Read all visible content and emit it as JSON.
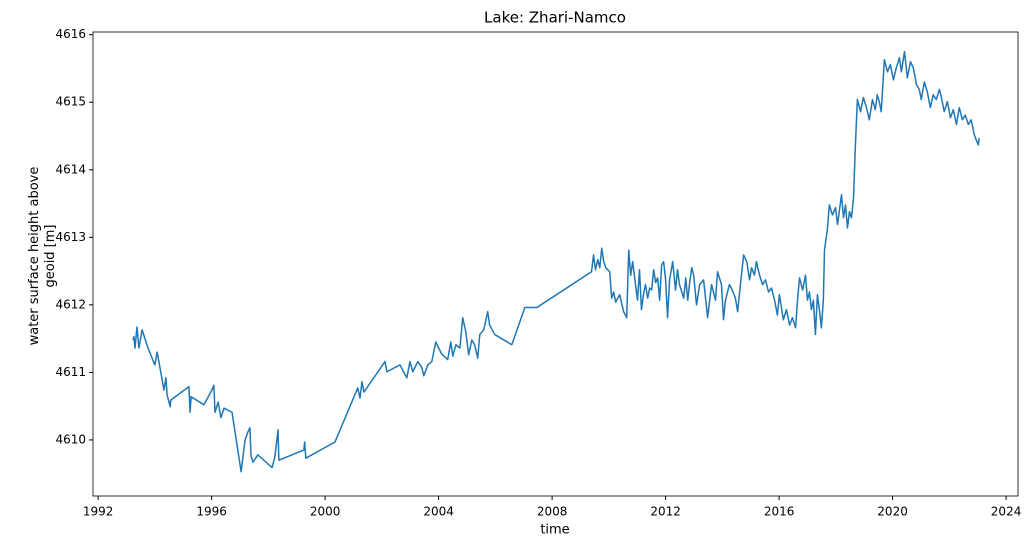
{
  "chart_data": {
    "type": "line",
    "title": "Lake: Zhari-Namco",
    "xlabel": "time",
    "ylabel": "water surface height above geoid [m]",
    "color": "#1f77b4",
    "xlim": [
      1991.82,
      2024.42
    ],
    "xticks": [
      1992,
      1996,
      2000,
      2004,
      2008,
      2012,
      2016,
      2020,
      2024
    ],
    "ylim": [
      4609.17,
      4616.04
    ],
    "yticks": [
      4610,
      4611,
      4612,
      4613,
      4614,
      4615,
      4616
    ],
    "x": [
      1993.23,
      1993.26,
      1993.3,
      1993.37,
      1993.44,
      1993.55,
      1993.76,
      1994.0,
      1994.08,
      1994.18,
      1994.32,
      1994.39,
      1994.43,
      1994.54,
      1994.56,
      1995.2,
      1995.24,
      1995.28,
      1995.73,
      1996.01,
      1996.08,
      1996.12,
      1996.23,
      1996.33,
      1996.44,
      1996.72,
      1997.04,
      1997.18,
      1997.28,
      1997.35,
      1997.39,
      1997.46,
      1997.63,
      1998.13,
      1998.23,
      1998.34,
      1998.37,
      1999.25,
      1999.28,
      1999.32,
      2000.35,
      2001.05,
      2001.15,
      2001.23,
      2001.3,
      2001.37,
      2002.11,
      2002.18,
      2002.64,
      2002.88,
      2002.99,
      2003.09,
      2003.27,
      2003.41,
      2003.48,
      2003.62,
      2003.76,
      2003.9,
      2004.04,
      2004.11,
      2004.32,
      2004.43,
      2004.5,
      2004.61,
      2004.75,
      2004.85,
      2004.96,
      2005.06,
      2005.17,
      2005.27,
      2005.38,
      2005.45,
      2005.59,
      2005.73,
      2005.8,
      2005.98,
      2006.58,
      2007.04,
      2007.46,
      2009.39,
      2009.46,
      2009.53,
      2009.61,
      2009.68,
      2009.75,
      2009.82,
      2009.89,
      2010.03,
      2010.1,
      2010.17,
      2010.24,
      2010.38,
      2010.52,
      2010.63,
      2010.7,
      2010.77,
      2010.84,
      2010.94,
      2011.01,
      2011.08,
      2011.15,
      2011.22,
      2011.29,
      2011.37,
      2011.44,
      2011.51,
      2011.58,
      2011.65,
      2011.72,
      2011.79,
      2011.86,
      2011.93,
      2012.0,
      2012.07,
      2012.14,
      2012.25,
      2012.35,
      2012.42,
      2012.49,
      2012.64,
      2012.71,
      2012.78,
      2012.85,
      2012.92,
      2012.99,
      2013.09,
      2013.2,
      2013.34,
      2013.48,
      2013.62,
      2013.76,
      2013.83,
      2013.97,
      2014.04,
      2014.11,
      2014.25,
      2014.35,
      2014.46,
      2014.54,
      2014.61,
      2014.75,
      2014.86,
      2014.96,
      2015.03,
      2015.13,
      2015.2,
      2015.31,
      2015.42,
      2015.52,
      2015.63,
      2015.73,
      2015.84,
      2015.94,
      2016.01,
      2016.15,
      2016.26,
      2016.37,
      2016.47,
      2016.58,
      2016.65,
      2016.72,
      2016.83,
      2016.93,
      2017.0,
      2017.07,
      2017.14,
      2017.21,
      2017.28,
      2017.35,
      2017.42,
      2017.49,
      2017.56,
      2017.6,
      2017.7,
      2017.77,
      2017.88,
      2017.99,
      2018.06,
      2018.13,
      2018.2,
      2018.27,
      2018.34,
      2018.41,
      2018.48,
      2018.55,
      2018.62,
      2018.69,
      2018.76,
      2018.87,
      2018.97,
      2019.08,
      2019.18,
      2019.29,
      2019.39,
      2019.46,
      2019.53,
      2019.6,
      2019.71,
      2019.82,
      2019.92,
      2020.03,
      2020.13,
      2020.24,
      2020.31,
      2020.42,
      2020.52,
      2020.63,
      2020.73,
      2020.84,
      2020.94,
      2021.01,
      2021.12,
      2021.22,
      2021.33,
      2021.43,
      2021.54,
      2021.65,
      2021.72,
      2021.82,
      2021.93,
      2022.04,
      2022.14,
      2022.25,
      2022.35,
      2022.46,
      2022.56,
      2022.67,
      2022.77,
      2022.88,
      2022.95,
      2023.02,
      2023.05
    ],
    "values": [
      4611.48,
      4611.53,
      4611.36,
      4611.67,
      4611.36,
      4611.63,
      4611.36,
      4611.11,
      4611.3,
      4611.07,
      4610.74,
      4610.92,
      4610.67,
      4610.49,
      4610.59,
      4610.79,
      4610.41,
      4610.64,
      4610.52,
      4610.74,
      4610.81,
      4610.41,
      4610.56,
      4610.33,
      4610.47,
      4610.41,
      4609.53,
      4610.0,
      4610.12,
      4610.18,
      4609.76,
      4609.67,
      4609.78,
      4609.59,
      4609.75,
      4610.15,
      4609.7,
      4609.85,
      4609.97,
      4609.73,
      4609.97,
      4610.67,
      4610.77,
      4610.62,
      4610.86,
      4610.71,
      4611.16,
      4611.01,
      4611.11,
      4610.92,
      4611.16,
      4611.01,
      4611.16,
      4611.07,
      4610.95,
      4611.11,
      4611.16,
      4611.45,
      4611.33,
      4611.27,
      4611.19,
      4611.45,
      4611.24,
      4611.41,
      4611.36,
      4611.81,
      4611.6,
      4611.26,
      4611.48,
      4611.41,
      4611.21,
      4611.56,
      4611.63,
      4611.9,
      4611.7,
      4611.56,
      4611.41,
      4611.96,
      4611.96,
      4612.49,
      4612.74,
      4612.52,
      4612.67,
      4612.55,
      4612.84,
      4612.64,
      4612.55,
      4612.49,
      4612.1,
      4612.19,
      4612.04,
      4612.15,
      4611.9,
      4611.81,
      4612.81,
      4612.44,
      4612.64,
      4612.3,
      4612.07,
      4612.52,
      4611.93,
      4612.15,
      4612.3,
      4612.1,
      4612.25,
      4612.22,
      4612.52,
      4612.33,
      4612.4,
      4612.07,
      4612.59,
      4612.64,
      4612.37,
      4611.81,
      4612.37,
      4612.64,
      4612.22,
      4612.52,
      4612.3,
      4612.1,
      4612.4,
      4612.07,
      4612.33,
      4612.55,
      4612.44,
      4612.0,
      4612.3,
      4612.37,
      4611.81,
      4612.3,
      4612.07,
      4612.49,
      4612.3,
      4611.78,
      4612.07,
      4612.3,
      4612.22,
      4612.1,
      4611.9,
      4612.19,
      4612.74,
      4612.64,
      4612.37,
      4612.55,
      4612.44,
      4612.64,
      4612.44,
      4612.3,
      4612.37,
      4612.19,
      4612.25,
      4612.07,
      4611.85,
      4612.15,
      4611.78,
      4611.93,
      4611.7,
      4611.81,
      4611.66,
      4612.07,
      4612.4,
      4612.22,
      4612.44,
      4612.07,
      4612.19,
      4611.93,
      4612.07,
      4611.56,
      4612.15,
      4611.93,
      4611.66,
      4612.07,
      4612.81,
      4613.11,
      4613.48,
      4613.33,
      4613.44,
      4613.19,
      4613.41,
      4613.63,
      4613.29,
      4613.48,
      4613.14,
      4613.38,
      4613.29,
      4613.56,
      4614.37,
      4615.04,
      4614.86,
      4615.07,
      4614.92,
      4614.74,
      4615.04,
      4614.89,
      4615.11,
      4615.01,
      4614.86,
      4615.63,
      4615.45,
      4615.56,
      4615.33,
      4615.51,
      4615.66,
      4615.45,
      4615.75,
      4615.36,
      4615.6,
      4615.51,
      4615.26,
      4615.19,
      4615.04,
      4615.3,
      4615.16,
      4614.92,
      4615.11,
      4615.04,
      4615.19,
      4615.07,
      4614.86,
      4615.01,
      4614.77,
      4614.89,
      4614.67,
      4614.92,
      4614.74,
      4614.81,
      4614.67,
      4614.74,
      4614.52,
      4614.44,
      4614.37,
      4614.47
    ]
  }
}
